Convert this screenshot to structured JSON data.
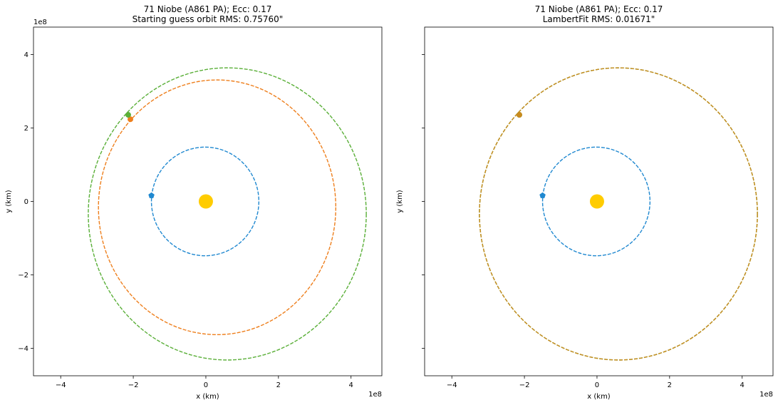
{
  "chart_data": [
    {
      "type": "scatter",
      "title": "71 Niobe (A861 PA); Ecc: 0.17",
      "subtitle": "Starting guess orbit RMS: 0.75760\"",
      "xlabel": "x (km)",
      "ylabel": "y (km)",
      "x_ticks": [
        -4,
        -2,
        0,
        2,
        4
      ],
      "y_ticks": [
        -4,
        -2,
        0,
        2,
        4
      ],
      "x_tick_labels": [
        "−4",
        "−2",
        "0",
        "2",
        "4"
      ],
      "y_tick_labels": [
        "−4",
        "−2",
        "0",
        "2",
        "4"
      ],
      "x_offset_label": "1e8",
      "y_offset_label": "1e8",
      "xlim": [
        -4.75,
        4.85
      ],
      "ylim": [
        -4.75,
        4.75
      ],
      "scale_factor": 100000000,
      "sun": {
        "x": 0,
        "y": 0,
        "color": "#ffcc00"
      },
      "orbits": [
        {
          "color": "#1f88d0",
          "cx": -0.02,
          "cy": 0.0,
          "a": 1.48,
          "b": 1.48,
          "marker_x": -1.5,
          "marker_y": 0.16
        },
        {
          "color": "#ee7f1d",
          "cx": 0.31,
          "cy": -0.16,
          "a": 3.27,
          "b": 3.47,
          "marker_x": -2.08,
          "marker_y": 2.24
        },
        {
          "color": "#5aaf38",
          "cx": 0.59,
          "cy": -0.34,
          "a": 3.83,
          "b": 3.98,
          "marker_x": -2.14,
          "marker_y": 2.36
        }
      ],
      "grid": false,
      "legend": false
    },
    {
      "type": "scatter",
      "title": "71 Niobe (A861 PA); Ecc: 0.17",
      "subtitle": "LambertFit RMS: 0.01671\"",
      "xlabel": "x (km)",
      "ylabel": "y (km)",
      "x_ticks": [
        -4,
        -2,
        0,
        2,
        4
      ],
      "y_ticks": [
        -4,
        -2,
        0,
        2,
        4
      ],
      "x_tick_labels": [
        "−4",
        "−2",
        "0",
        "2",
        "4"
      ],
      "y_tick_labels": [],
      "x_offset_label": "1e8",
      "y_offset_label": "",
      "xlim": [
        -4.75,
        4.85
      ],
      "ylim": [
        -4.75,
        4.75
      ],
      "scale_factor": 100000000,
      "sun": {
        "x": 0,
        "y": 0,
        "color": "#ffcc00"
      },
      "orbits": [
        {
          "color": "#1f88d0",
          "cx": -0.02,
          "cy": 0.0,
          "a": 1.48,
          "b": 1.48,
          "marker_x": -1.5,
          "marker_y": 0.16
        },
        {
          "color": "#5aaf38",
          "cx": 0.59,
          "cy": -0.34,
          "a": 3.83,
          "b": 3.98,
          "marker_x": -2.14,
          "marker_y": 2.36
        },
        {
          "color": "#c98a1e",
          "cx": 0.59,
          "cy": -0.34,
          "a": 3.83,
          "b": 3.98,
          "marker_x": -2.14,
          "marker_y": 2.36
        }
      ],
      "grid": false,
      "legend": false
    }
  ]
}
